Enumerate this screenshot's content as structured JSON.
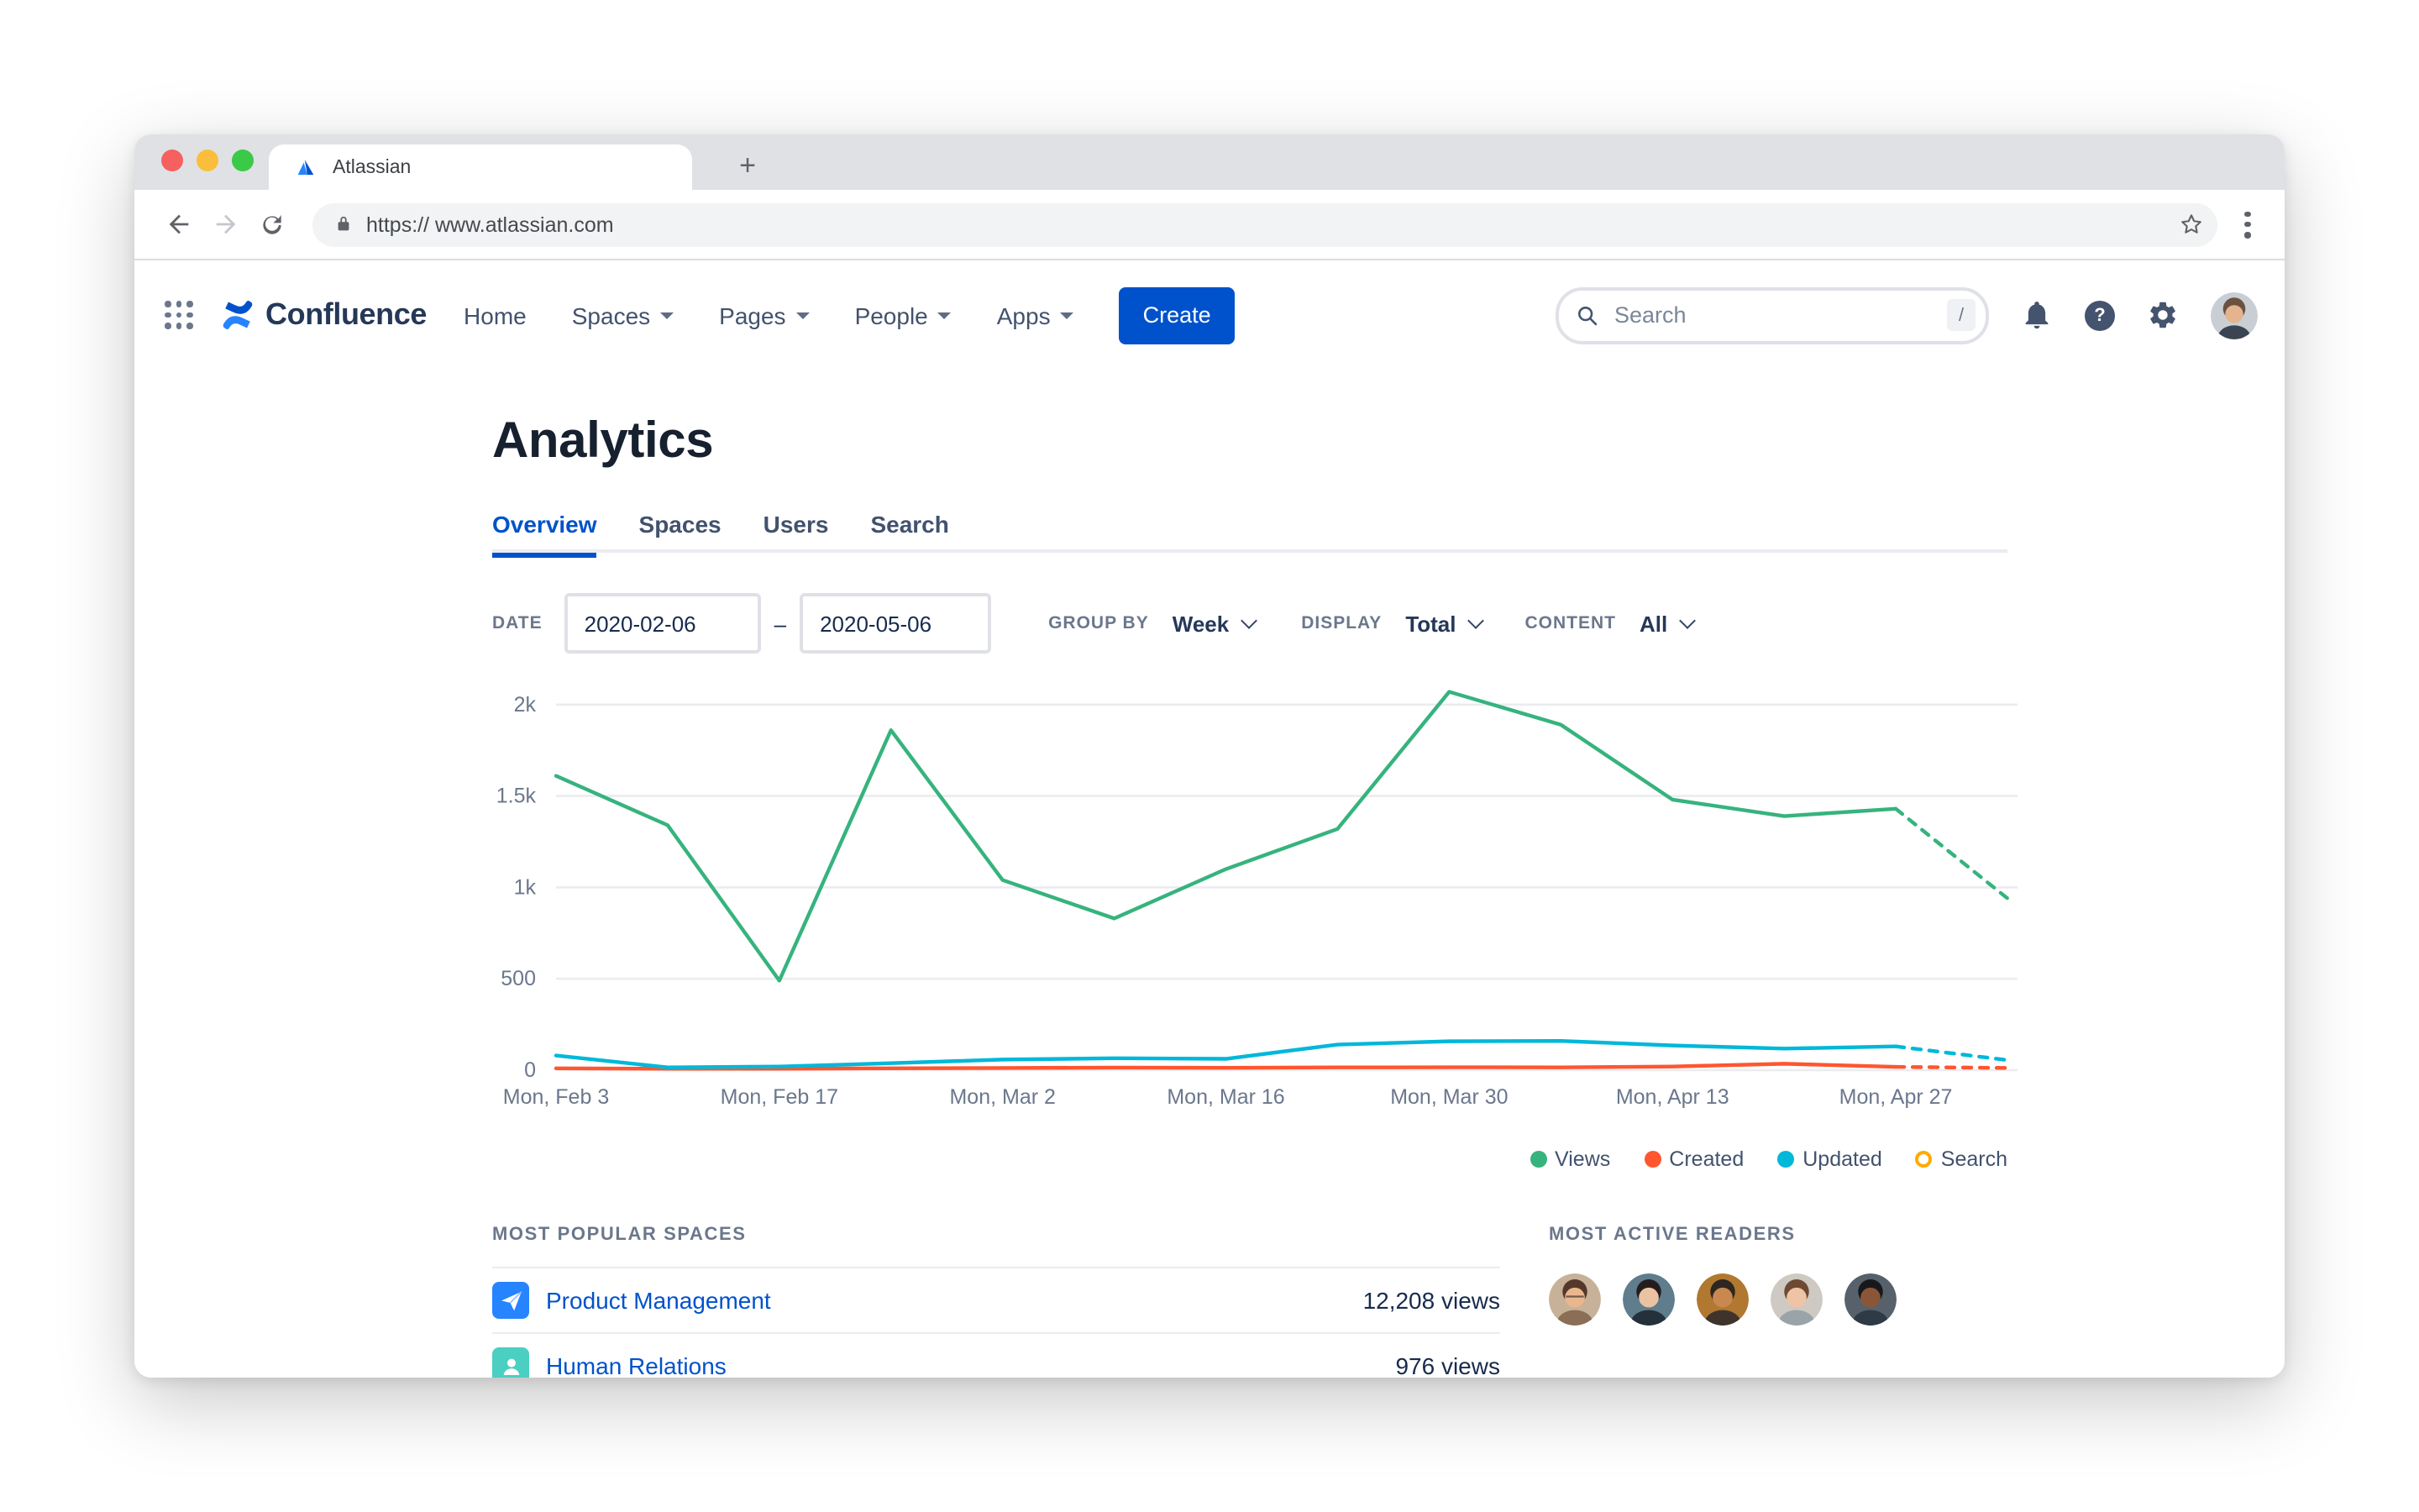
{
  "browser": {
    "tab_title": "Atlassian",
    "new_tab_button": "+",
    "url": "https:// www.atlassian.com"
  },
  "nav": {
    "product": "Confluence",
    "items": [
      {
        "label": "Home",
        "caret": false
      },
      {
        "label": "Spaces",
        "caret": true
      },
      {
        "label": "Pages",
        "caret": true
      },
      {
        "label": "People",
        "caret": true
      },
      {
        "label": "Apps",
        "caret": true
      }
    ],
    "create_label": "Create",
    "search_placeholder": "Search",
    "search_shortcut": "/",
    "avatar": {
      "bg": "#C9CED4",
      "hair": "#6B5140",
      "skin": "#E3B48E",
      "shirt": "#3A4452"
    }
  },
  "page": {
    "title": "Analytics",
    "tabs": [
      {
        "label": "Overview",
        "active": true
      },
      {
        "label": "Spaces",
        "active": false
      },
      {
        "label": "Users",
        "active": false
      },
      {
        "label": "Search",
        "active": false
      }
    ]
  },
  "filters": {
    "date_label": "DATE",
    "date_from": "2020-02-06",
    "date_separator": "–",
    "date_to": "2020-05-06",
    "group_by_label": "GROUP BY",
    "group_by_value": "Week",
    "display_label": "DISPLAY",
    "display_value": "Total",
    "content_label": "CONTENT",
    "content_value": "All"
  },
  "chart_data": {
    "type": "line",
    "x_unit": "week",
    "x_tick_labels": [
      "Mon, Feb 3",
      "Mon, Feb 17",
      "Mon, Mar 2",
      "Mon, Mar 16",
      "Mon, Mar 30",
      "Mon, Apr 13",
      "Mon, Apr 27"
    ],
    "weeks": [
      "Feb 3",
      "Feb 10",
      "Feb 17",
      "Feb 24",
      "Mar 2",
      "Mar 9",
      "Mar 16",
      "Mar 23",
      "Mar 30",
      "Apr 6",
      "Apr 13",
      "Apr 20",
      "Apr 27",
      "May 4"
    ],
    "ylim": [
      0,
      2000
    ],
    "y_tick_values": [
      0,
      500,
      1000,
      1500,
      2000
    ],
    "y_tick_labels": [
      "0",
      "500",
      "1k",
      "1.5k",
      "2k"
    ],
    "grid": true,
    "note": "final segment Apr 27 to May 4 (partial week) drawn dashed",
    "series": [
      {
        "name": "Views",
        "color": "#36B37E",
        "values": [
          1610,
          1340,
          490,
          1860,
          1040,
          830,
          1100,
          1320,
          2070,
          1890,
          1480,
          1390,
          1430
        ],
        "forecast": 940,
        "visible": true
      },
      {
        "name": "Created",
        "color": "#FF5630",
        "values": [
          10,
          8,
          8,
          10,
          12,
          14,
          13,
          15,
          16,
          15,
          20,
          35,
          18
        ],
        "forecast": 12,
        "visible": true
      },
      {
        "name": "Updated",
        "color": "#00B8D9",
        "values": [
          80,
          15,
          20,
          38,
          58,
          65,
          62,
          140,
          158,
          160,
          135,
          118,
          130
        ],
        "forecast": 55,
        "visible": true
      },
      {
        "name": "Search",
        "color": "#FFAB00",
        "values": [],
        "visible": false
      }
    ],
    "legend": [
      {
        "label": "Views",
        "color": "#36B37E",
        "filled": true
      },
      {
        "label": "Created",
        "color": "#FF5630",
        "filled": true
      },
      {
        "label": "Updated",
        "color": "#00B8D9",
        "filled": true
      },
      {
        "label": "Search",
        "color": "#FFAB00",
        "filled": false
      }
    ],
    "legend_position": "bottom-right"
  },
  "popular_spaces": {
    "heading": "MOST POPULAR SPACES",
    "rows": [
      {
        "name": "Product Management",
        "views": "12,208 views",
        "icon": "paper-plane",
        "icon_bg": "#2684FF"
      },
      {
        "name": "Human Relations",
        "views": "976 views",
        "icon": "person",
        "icon_bg": "#4BCFC0"
      }
    ]
  },
  "active_readers": {
    "heading": "MOST ACTIVE READERS",
    "avatars": [
      {
        "bg": "#C7B299",
        "hair": "#54382A",
        "skin": "#E9B68E",
        "shirt": "#8A6E55",
        "glasses": true
      },
      {
        "bg": "#5F7D8C",
        "hair": "#241D1E",
        "skin": "#EBC3A3",
        "shirt": "#24303A"
      },
      {
        "bg": "#B07830",
        "hair": "#2E2620",
        "skin": "#C98850",
        "shirt": "#3E342C"
      },
      {
        "bg": "#CEC9C2",
        "hair": "#6E4A33",
        "skin": "#EFC4A6",
        "shirt": "#9AA3A8"
      },
      {
        "bg": "#57616B",
        "hair": "#17181C",
        "skin": "#8A5638",
        "shirt": "#2E3B46"
      }
    ]
  }
}
